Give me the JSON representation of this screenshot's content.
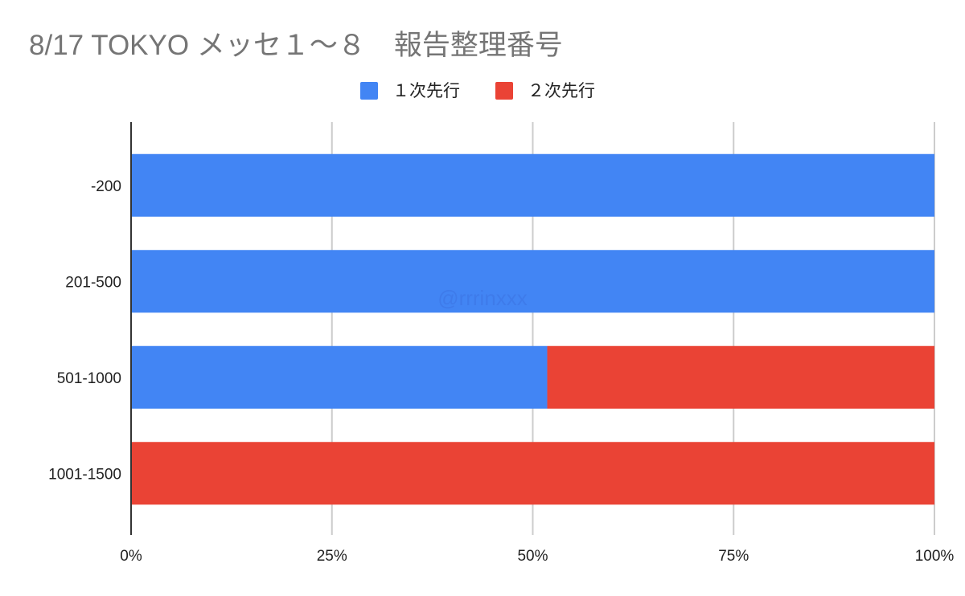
{
  "chart_data": {
    "type": "bar",
    "orientation": "horizontal",
    "stacked": "percent",
    "title": "8/17 TOKYO メッセ１〜８　報告整理番号",
    "categories": [
      "-200",
      "201-500",
      "501-1000",
      "1001-1500"
    ],
    "series": [
      {
        "name": "１次先行",
        "color": "#4285f4",
        "values": [
          100,
          100,
          51.8,
          0
        ]
      },
      {
        "name": "２次先行",
        "color": "#ea4335",
        "values": [
          0,
          0,
          48.2,
          100
        ]
      }
    ],
    "xticks": [
      "0%",
      "25%",
      "50%",
      "75%",
      "100%"
    ],
    "xlim": [
      0,
      100
    ],
    "grid": true,
    "legend": "top",
    "watermark": "@rrrinxxx"
  }
}
